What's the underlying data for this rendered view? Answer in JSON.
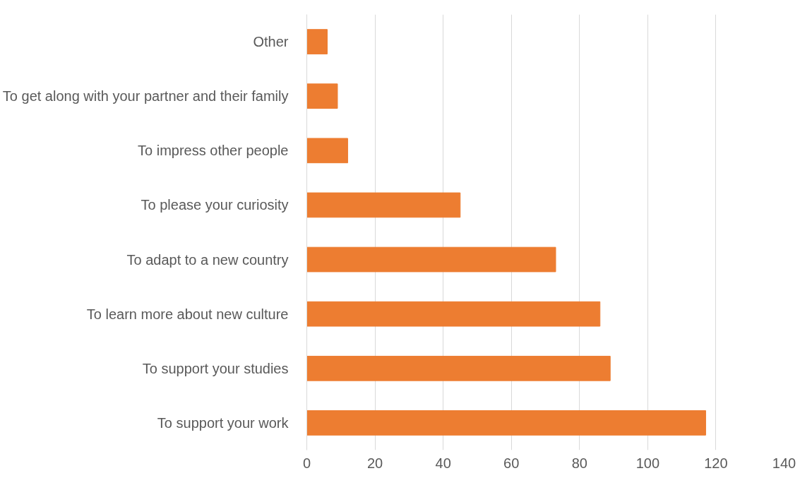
{
  "chart_data": {
    "type": "bar",
    "orientation": "horizontal",
    "categories": [
      "Other",
      "To get along with your partner and their family",
      "To impress other people",
      "To please your curiosity",
      "To adapt to a new country",
      "To learn more about new culture",
      "To support your studies",
      "To support your work"
    ],
    "values": [
      6,
      9,
      12,
      45,
      73,
      86,
      89,
      117
    ],
    "color": "#ed7d31",
    "xlim": [
      0,
      140
    ],
    "xticks": [
      0,
      20,
      40,
      60,
      80,
      100,
      120,
      140
    ],
    "grid": "x"
  }
}
